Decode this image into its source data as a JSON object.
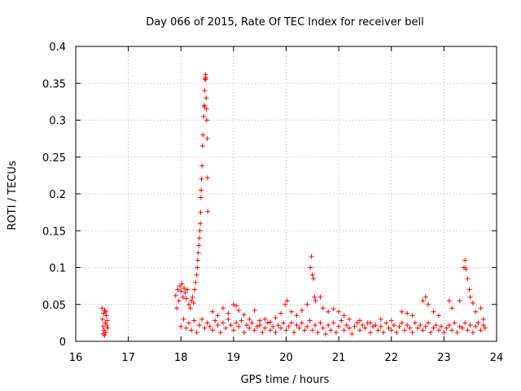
{
  "chart_data": {
    "type": "scatter",
    "title": "Day 066 of 2015, Rate Of TEC Index for receiver bell",
    "xlabel": "GPS time / hours",
    "ylabel": "ROTI / TECUs",
    "xlim": [
      16,
      24
    ],
    "ylim": [
      0,
      0.4
    ],
    "xticks": [
      "16",
      "17",
      "18",
      "19",
      "20",
      "21",
      "22",
      "23",
      "24"
    ],
    "yticks": [
      "0",
      "0.05",
      "0.1",
      "0.15",
      "0.2",
      "0.25",
      "0.3",
      "0.35",
      "0.4"
    ],
    "xtick_values": [
      16,
      17,
      18,
      19,
      20,
      21,
      22,
      23,
      24
    ],
    "ytick_values": [
      0,
      0.05,
      0.1,
      0.15,
      0.2,
      0.25,
      0.3,
      0.35,
      0.4
    ],
    "grid": true,
    "marker": "+",
    "series": [
      {
        "name": "ROTI",
        "color": "#ff0000",
        "points": [
          [
            16.5,
            0.045
          ],
          [
            16.51,
            0.03
          ],
          [
            16.52,
            0.02
          ],
          [
            16.53,
            0.038
          ],
          [
            16.54,
            0.015
          ],
          [
            16.55,
            0.042
          ],
          [
            16.56,
            0.025
          ],
          [
            16.57,
            0.012
          ],
          [
            16.58,
            0.035
          ],
          [
            16.59,
            0.022
          ],
          [
            16.6,
            0.028
          ],
          [
            16.61,
            0.018
          ],
          [
            16.52,
            0.01
          ],
          [
            16.57,
            0.04
          ],
          [
            16.55,
            0.008
          ],
          [
            17.9,
            0.062
          ],
          [
            17.92,
            0.045
          ],
          [
            17.94,
            0.07
          ],
          [
            17.96,
            0.055
          ],
          [
            17.98,
            0.075
          ],
          [
            18.0,
            0.068
          ],
          [
            18.02,
            0.078
          ],
          [
            18.04,
            0.06
          ],
          [
            18.06,
            0.072
          ],
          [
            18.08,
            0.066
          ],
          [
            18.1,
            0.058
          ],
          [
            18.12,
            0.07
          ],
          [
            18.15,
            0.05
          ],
          [
            18.18,
            0.045
          ],
          [
            18.2,
            0.055
          ],
          [
            18.22,
            0.06
          ],
          [
            18.24,
            0.052
          ],
          [
            18.26,
            0.07
          ],
          [
            18.28,
            0.08
          ],
          [
            18.3,
            0.09
          ],
          [
            18.31,
            0.1
          ],
          [
            18.32,
            0.11
          ],
          [
            18.33,
            0.12
          ],
          [
            18.34,
            0.13
          ],
          [
            18.35,
            0.14
          ],
          [
            18.36,
            0.15
          ],
          [
            18.37,
            0.16
          ],
          [
            18.375,
            0.175
          ],
          [
            18.38,
            0.195
          ],
          [
            18.385,
            0.205
          ],
          [
            18.39,
            0.22
          ],
          [
            18.4,
            0.238
          ],
          [
            18.41,
            0.265
          ],
          [
            18.42,
            0.28
          ],
          [
            18.43,
            0.305
          ],
          [
            18.44,
            0.32
          ],
          [
            18.45,
            0.34
          ],
          [
            18.46,
            0.355
          ],
          [
            18.465,
            0.362
          ],
          [
            18.47,
            0.358
          ],
          [
            18.48,
            0.33
          ],
          [
            18.485,
            0.315
          ],
          [
            18.49,
            0.3
          ],
          [
            18.5,
            0.275
          ],
          [
            18.505,
            0.222
          ],
          [
            18.51,
            0.176
          ],
          [
            18.47,
            0.356
          ],
          [
            18.45,
            0.318
          ],
          [
            18.6,
            0.04
          ],
          [
            18.7,
            0.035
          ],
          [
            18.8,
            0.045
          ],
          [
            18.9,
            0.038
          ],
          [
            19.0,
            0.05
          ],
          [
            19.05,
            0.048
          ],
          [
            19.1,
            0.042
          ],
          [
            19.2,
            0.036
          ],
          [
            19.3,
            0.03
          ],
          [
            19.4,
            0.042
          ],
          [
            19.5,
            0.028
          ],
          [
            19.6,
            0.03
          ],
          [
            19.7,
            0.026
          ],
          [
            19.8,
            0.032
          ],
          [
            19.9,
            0.038
          ],
          [
            19.98,
            0.05
          ],
          [
            20.02,
            0.055
          ],
          [
            20.1,
            0.04
          ],
          [
            20.2,
            0.035
          ],
          [
            20.3,
            0.042
          ],
          [
            20.4,
            0.05
          ],
          [
            20.46,
            0.1
          ],
          [
            20.48,
            0.115
          ],
          [
            20.5,
            0.09
          ],
          [
            20.52,
            0.085
          ],
          [
            20.54,
            0.06
          ],
          [
            20.56,
            0.055
          ],
          [
            20.65,
            0.06
          ],
          [
            20.7,
            0.045
          ],
          [
            20.8,
            0.04
          ],
          [
            20.9,
            0.044
          ],
          [
            21.0,
            0.04
          ],
          [
            21.1,
            0.035
          ],
          [
            21.2,
            0.03
          ],
          [
            21.4,
            0.028
          ],
          [
            21.6,
            0.025
          ],
          [
            21.8,
            0.03
          ],
          [
            22.0,
            0.028
          ],
          [
            22.2,
            0.04
          ],
          [
            22.3,
            0.038
          ],
          [
            22.4,
            0.035
          ],
          [
            22.6,
            0.055
          ],
          [
            22.65,
            0.06
          ],
          [
            22.7,
            0.05
          ],
          [
            22.8,
            0.04
          ],
          [
            22.9,
            0.035
          ],
          [
            23.1,
            0.055
          ],
          [
            23.15,
            0.045
          ],
          [
            23.3,
            0.055
          ],
          [
            23.38,
            0.1
          ],
          [
            23.4,
            0.11
          ],
          [
            23.42,
            0.098
          ],
          [
            23.45,
            0.085
          ],
          [
            23.48,
            0.07
          ],
          [
            23.5,
            0.06
          ],
          [
            23.55,
            0.052
          ],
          [
            23.6,
            0.04
          ],
          [
            23.7,
            0.045
          ],
          [
            23.75,
            0.03
          ],
          [
            18.0,
            0.02
          ],
          [
            18.05,
            0.03
          ],
          [
            18.1,
            0.018
          ],
          [
            18.15,
            0.025
          ],
          [
            18.2,
            0.015
          ],
          [
            18.25,
            0.028
          ],
          [
            18.3,
            0.012
          ],
          [
            18.35,
            0.022
          ],
          [
            18.4,
            0.03
          ],
          [
            18.45,
            0.018
          ],
          [
            18.5,
            0.025
          ],
          [
            18.55,
            0.02
          ],
          [
            18.6,
            0.015
          ],
          [
            18.65,
            0.028
          ],
          [
            18.7,
            0.022
          ],
          [
            18.75,
            0.012
          ],
          [
            18.8,
            0.025
          ],
          [
            18.85,
            0.018
          ],
          [
            18.9,
            0.03
          ],
          [
            18.95,
            0.022
          ],
          [
            19.0,
            0.015
          ],
          [
            19.05,
            0.025
          ],
          [
            19.1,
            0.02
          ],
          [
            19.15,
            0.028
          ],
          [
            19.2,
            0.012
          ],
          [
            19.25,
            0.022
          ],
          [
            19.3,
            0.018
          ],
          [
            19.35,
            0.025
          ],
          [
            19.4,
            0.015
          ],
          [
            19.45,
            0.02
          ],
          [
            19.5,
            0.022
          ],
          [
            19.55,
            0.012
          ],
          [
            19.6,
            0.018
          ],
          [
            19.65,
            0.025
          ],
          [
            19.7,
            0.015
          ],
          [
            19.75,
            0.02
          ],
          [
            19.8,
            0.012
          ],
          [
            19.85,
            0.022
          ],
          [
            19.9,
            0.018
          ],
          [
            19.95,
            0.025
          ],
          [
            20.0,
            0.015
          ],
          [
            20.05,
            0.02
          ],
          [
            20.1,
            0.025
          ],
          [
            20.15,
            0.012
          ],
          [
            20.2,
            0.022
          ],
          [
            20.25,
            0.018
          ],
          [
            20.3,
            0.025
          ],
          [
            20.35,
            0.015
          ],
          [
            20.4,
            0.02
          ],
          [
            20.45,
            0.028
          ],
          [
            20.5,
            0.015
          ],
          [
            20.55,
            0.022
          ],
          [
            20.6,
            0.012
          ],
          [
            20.65,
            0.025
          ],
          [
            20.7,
            0.018
          ],
          [
            20.75,
            0.01
          ],
          [
            20.8,
            0.022
          ],
          [
            20.85,
            0.015
          ],
          [
            20.9,
            0.025
          ],
          [
            20.95,
            0.012
          ],
          [
            21.0,
            0.02
          ],
          [
            21.05,
            0.028
          ],
          [
            21.1,
            0.015
          ],
          [
            21.15,
            0.022
          ],
          [
            21.2,
            0.018
          ],
          [
            21.25,
            0.01
          ],
          [
            21.3,
            0.02
          ],
          [
            21.35,
            0.025
          ],
          [
            21.4,
            0.015
          ],
          [
            21.45,
            0.022
          ],
          [
            21.5,
            0.018
          ],
          [
            21.55,
            0.025
          ],
          [
            21.6,
            0.012
          ],
          [
            21.65,
            0.02
          ],
          [
            21.7,
            0.022
          ],
          [
            21.75,
            0.015
          ],
          [
            21.8,
            0.02
          ],
          [
            21.85,
            0.012
          ],
          [
            21.9,
            0.025
          ],
          [
            21.95,
            0.018
          ],
          [
            22.0,
            0.015
          ],
          [
            22.05,
            0.022
          ],
          [
            22.1,
            0.012
          ],
          [
            22.15,
            0.02
          ],
          [
            22.2,
            0.025
          ],
          [
            22.25,
            0.015
          ],
          [
            22.3,
            0.022
          ],
          [
            22.35,
            0.018
          ],
          [
            22.4,
            0.012
          ],
          [
            22.45,
            0.025
          ],
          [
            22.5,
            0.018
          ],
          [
            22.55,
            0.022
          ],
          [
            22.6,
            0.015
          ],
          [
            22.65,
            0.02
          ],
          [
            22.7,
            0.025
          ],
          [
            22.75,
            0.012
          ],
          [
            22.8,
            0.018
          ],
          [
            22.85,
            0.022
          ],
          [
            22.9,
            0.015
          ],
          [
            22.95,
            0.02
          ],
          [
            23.0,
            0.012
          ],
          [
            23.05,
            0.018
          ],
          [
            23.1,
            0.022
          ],
          [
            23.15,
            0.015
          ],
          [
            23.2,
            0.025
          ],
          [
            23.25,
            0.012
          ],
          [
            23.3,
            0.02
          ],
          [
            23.35,
            0.018
          ],
          [
            23.4,
            0.025
          ],
          [
            23.45,
            0.015
          ],
          [
            23.5,
            0.022
          ],
          [
            23.55,
            0.012
          ],
          [
            23.6,
            0.02
          ],
          [
            23.65,
            0.025
          ],
          [
            23.7,
            0.015
          ],
          [
            23.75,
            0.022
          ],
          [
            23.78,
            0.018
          ]
        ]
      }
    ]
  }
}
